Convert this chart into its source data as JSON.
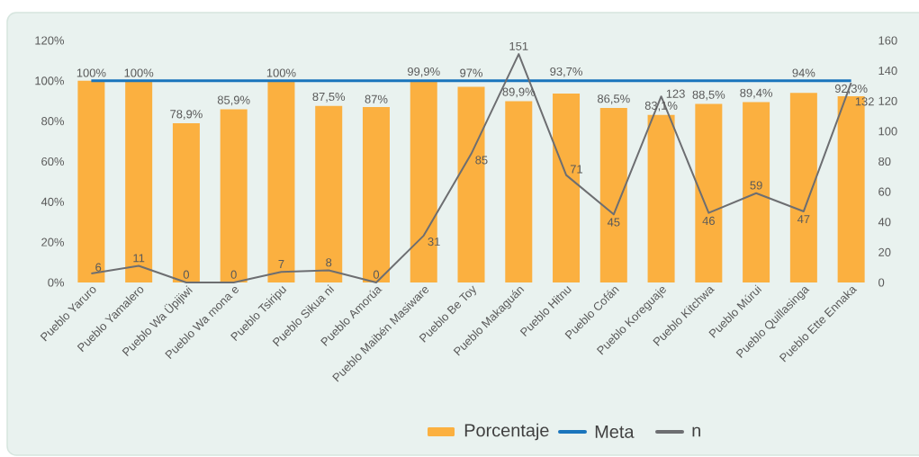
{
  "chart_data": {
    "type": "bar",
    "categories": [
      "Pueblo Yaruro",
      "Pueblo Yamalero",
      "Pueblo Wa Üpijiwi",
      "Pueblo Wa mona e",
      "Pueblo Tsiripu",
      "Pueblo Sikua ni",
      "Pueblo Amorúa",
      "Pueblo Maibén Masiware",
      "Pueblo Be Toy",
      "Pueblo Makaguán",
      "Pueblo Hitnu",
      "Pueblo Cofán",
      "Pueblo Koreguaje",
      "Pueblo Kitchwa",
      "Pueblo Múrui",
      "Pueblo Quillasinga",
      "Pueblo Ette Ennaka"
    ],
    "series": [
      {
        "name": "Porcentaje",
        "type": "bar",
        "color": "#fbb040",
        "values": [
          100,
          100,
          78.9,
          85.9,
          100,
          87.5,
          87,
          99.9,
          97,
          89.9,
          93.7,
          86.5,
          83.1,
          88.5,
          89.4,
          94,
          92.3
        ],
        "value_labels": [
          "100%",
          "100%",
          "78,9%",
          "85,9%",
          "100%",
          "87,5%",
          "87%",
          "99,9%",
          "97%",
          "89,9%",
          "93,7%",
          "86,5%",
          "83,1%",
          "88,5%",
          "89,4%",
          "94%",
          "92,3%"
        ]
      },
      {
        "name": "Meta",
        "type": "line",
        "color": "#1a75bc",
        "values": [
          100,
          100,
          100,
          100,
          100,
          100,
          100,
          100,
          100,
          100,
          100,
          100,
          100,
          100,
          100,
          100,
          100
        ]
      },
      {
        "name": "n",
        "type": "line",
        "axis": "y2",
        "color": "#6d6e71",
        "values": [
          6,
          11,
          0,
          0,
          7,
          8,
          0,
          31,
          85,
          151,
          71,
          45,
          123,
          46,
          59,
          47,
          132
        ],
        "value_labels": [
          "6",
          "11",
          "0",
          "0",
          "7",
          "8",
          "0",
          "31",
          "85",
          "151",
          "71",
          "45",
          "123",
          "46",
          "59",
          "47",
          "132"
        ]
      }
    ],
    "ylim": [
      0,
      120
    ],
    "yticks": [
      {
        "value": 0,
        "label": "0%"
      },
      {
        "value": 20,
        "label": "20%"
      },
      {
        "value": 40,
        "label": "40%"
      },
      {
        "value": 60,
        "label": "60%"
      },
      {
        "value": 80,
        "label": "80%"
      },
      {
        "value": 100,
        "label": "100%"
      },
      {
        "value": 120,
        "label": "120%"
      }
    ],
    "y2lim": [
      0,
      160
    ],
    "y2ticks": [
      0,
      20,
      40,
      60,
      80,
      100,
      120,
      140,
      160
    ],
    "legend": "bottom",
    "grid": false
  }
}
